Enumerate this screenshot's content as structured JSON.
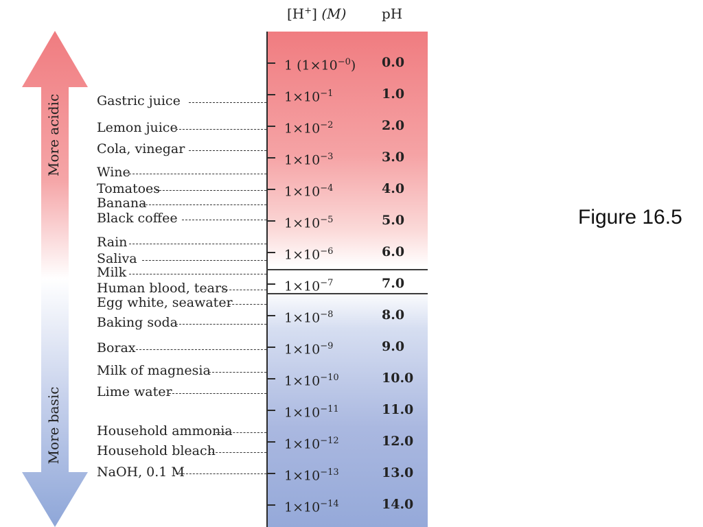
{
  "header": {
    "concentration_label": "[H+] (M)",
    "concentration_base": "[H",
    "concentration_sup": "+",
    "concentration_rest": "] ",
    "concentration_unit": "(M)",
    "ph_label": "pH"
  },
  "figure_caption": "Figure 16.5",
  "arrow": {
    "acidic_label": "More acidic",
    "basic_label": "More basic",
    "acid_color": "#f07c80",
    "base_color": "#8ea6d8"
  },
  "scale": {
    "acid_color": "#f07c80",
    "neutral_color": "#ffffff",
    "base_color": "#95a9d9",
    "rows": [
      {
        "conc_base": "1 (1×10",
        "conc_exp": "−0",
        "conc_tail": ")",
        "ph": "0.0"
      },
      {
        "conc_base": "1×10",
        "conc_exp": "−1",
        "conc_tail": "",
        "ph": "1.0"
      },
      {
        "conc_base": "1×10",
        "conc_exp": "−2",
        "conc_tail": "",
        "ph": "2.0"
      },
      {
        "conc_base": "1×10",
        "conc_exp": "−3",
        "conc_tail": "",
        "ph": "3.0"
      },
      {
        "conc_base": "1×10",
        "conc_exp": "−4",
        "conc_tail": "",
        "ph": "4.0"
      },
      {
        "conc_base": "1×10",
        "conc_exp": "−5",
        "conc_tail": "",
        "ph": "5.0"
      },
      {
        "conc_base": "1×10",
        "conc_exp": "−6",
        "conc_tail": "",
        "ph": "6.0"
      },
      {
        "conc_base": "1×10",
        "conc_exp": "−7",
        "conc_tail": "",
        "ph": "7.0"
      },
      {
        "conc_base": "1×10",
        "conc_exp": "−8",
        "conc_tail": "",
        "ph": "8.0"
      },
      {
        "conc_base": "1×10",
        "conc_exp": "−9",
        "conc_tail": "",
        "ph": "9.0"
      },
      {
        "conc_base": "1×10",
        "conc_exp": "−10",
        "conc_tail": "",
        "ph": "10.0"
      },
      {
        "conc_base": "1×10",
        "conc_exp": "−11",
        "conc_tail": "",
        "ph": "11.0"
      },
      {
        "conc_base": "1×10",
        "conc_exp": "−12",
        "conc_tail": "",
        "ph": "12.0"
      },
      {
        "conc_base": "1×10",
        "conc_exp": "−13",
        "conc_tail": "",
        "ph": "13.0"
      },
      {
        "conc_base": "1×10",
        "conc_exp": "−14",
        "conc_tail": "",
        "ph": "14.0"
      }
    ]
  },
  "substances": [
    {
      "name": "Gastric juice",
      "ph": 1.2
    },
    {
      "name": "Lemon juice",
      "ph": 2.0
    },
    {
      "name": "Cola, vinegar",
      "ph": 2.8
    },
    {
      "name": "Wine",
      "ph": 3.5
    },
    {
      "name": "Tomatoes",
      "ph": 4.0
    },
    {
      "name": "Banana",
      "ph": 4.6
    },
    {
      "name": "Black coffee",
      "ph": 5.0
    },
    {
      "name": "Rain",
      "ph": 5.7
    },
    {
      "name": "Saliva",
      "ph": 6.3
    },
    {
      "name": "Milk",
      "ph": 6.6
    },
    {
      "name": "Human blood, tears",
      "ph": 7.3
    },
    {
      "name": "Egg white, seawater",
      "ph": 7.7
    },
    {
      "name": "Baking soda",
      "ph": 8.3
    },
    {
      "name": "Borax",
      "ph": 9.2
    },
    {
      "name": "Milk of magnesia",
      "ph": 10.5
    },
    {
      "name": "Lime water",
      "ph": 11.0
    },
    {
      "name": "Household ammonia",
      "ph": 11.8
    },
    {
      "name": "Household bleach",
      "ph": 12.4
    },
    {
      "name": "NaOH, 0.1 M",
      "ph": 13.0
    }
  ]
}
